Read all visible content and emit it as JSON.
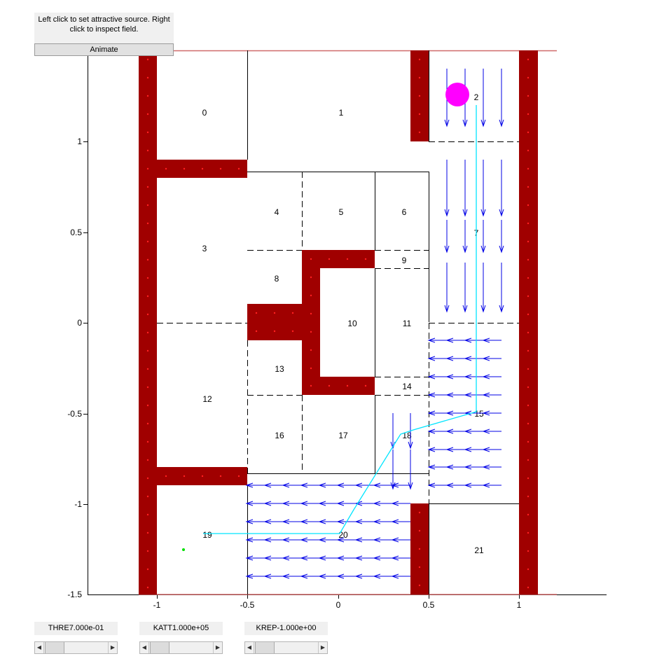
{
  "info_text": "Left click to set attractive source. Right click to inspect field.",
  "animate_label": "Animate",
  "axes": {
    "xticks": [
      "-1",
      "-0.5",
      "0",
      "0.5",
      "1"
    ],
    "yticks": [
      "1",
      "0.5",
      "0",
      "-0.5",
      "-1",
      "-1.5"
    ]
  },
  "cells": [
    "0",
    "1",
    "2",
    "3",
    "4",
    "5",
    "6",
    "7",
    "8",
    "9",
    "10",
    "11",
    "12",
    "13",
    "14",
    "15",
    "16",
    "17",
    "18",
    "19",
    "20",
    "21"
  ],
  "sliders": [
    {
      "label": "THRE7.000e-01",
      "value": 0.15
    },
    {
      "label": "KATT1.000e+05",
      "value": 0.15
    },
    {
      "label": "KREP-1.000e+00",
      "value": 0.15
    }
  ],
  "colors": {
    "obstacle": "#a00000",
    "arrow": "#0000e6",
    "path": "#00e5ff",
    "source": "#ff00ff",
    "start": "#00e000"
  }
}
